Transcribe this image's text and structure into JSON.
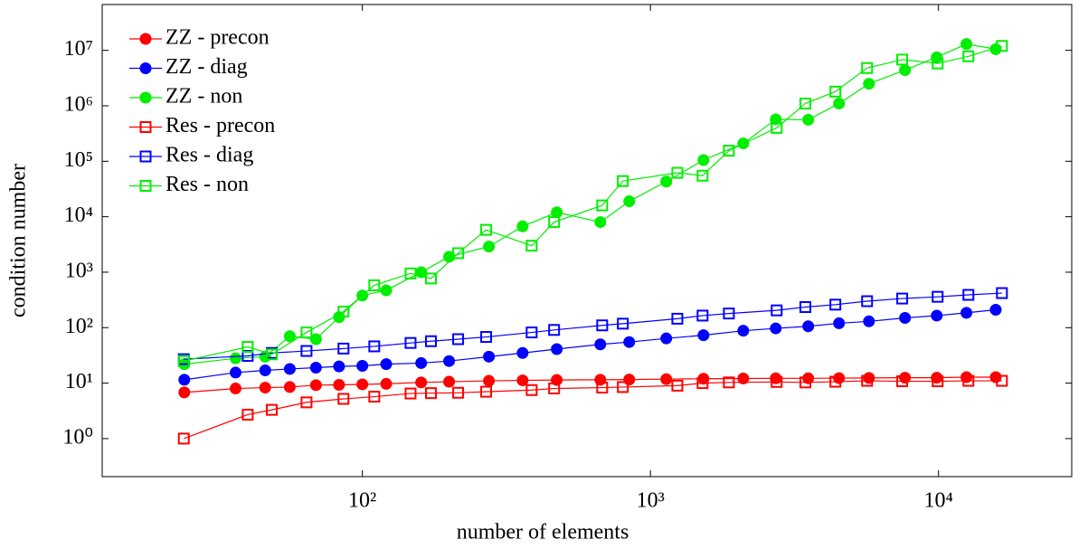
{
  "chart_data": {
    "type": "line",
    "xlabel": "number of elements",
    "ylabel": "condition number",
    "xscale": "log",
    "yscale": "log",
    "xlim": [
      12.5,
      29000
    ],
    "ylim": [
      0.206,
      67000000
    ],
    "xticks": [
      {
        "value": 100,
        "label": "10²"
      },
      {
        "value": 1000,
        "label": "10³"
      },
      {
        "value": 10000,
        "label": "10⁴"
      }
    ],
    "yticks": [
      {
        "value": 1,
        "label": "10⁰"
      },
      {
        "value": 10,
        "label": "10¹"
      },
      {
        "value": 100,
        "label": "10²"
      },
      {
        "value": 1000,
        "label": "10³"
      },
      {
        "value": 10000,
        "label": "10⁴"
      },
      {
        "value": 100000,
        "label": "10⁵"
      },
      {
        "value": 1000000,
        "label": "10⁶"
      },
      {
        "value": 10000000,
        "label": "10⁷"
      }
    ],
    "legend": "upper left",
    "series": [
      {
        "name": "ZZ - precon",
        "color": "#ff0000",
        "marker": "circle",
        "x": [
          24.1,
          36.3,
          46,
          56,
          69,
          83,
          100,
          121,
          160,
          200,
          275,
          360,
          473,
          670,
          844,
          1135,
          1528,
          2100,
          2723,
          3530,
          4515,
          5735,
          7650,
          9860,
          12500,
          15800
        ],
        "values": [
          6.8,
          8,
          8.3,
          8.5,
          9.2,
          9.3,
          9.5,
          9.7,
          10.3,
          10.6,
          11,
          11.2,
          11.4,
          11.5,
          11.6,
          11.8,
          12,
          12.1,
          12.2,
          12.2,
          12.3,
          12.4,
          12.5,
          12.5,
          12.8,
          12.8
        ]
      },
      {
        "name": "ZZ - diag",
        "color": "#0000ff",
        "marker": "circle",
        "x": [
          24.1,
          36.3,
          46,
          56,
          69,
          83,
          100,
          121,
          160,
          200,
          275,
          360,
          473,
          670,
          844,
          1135,
          1528,
          2100,
          2723,
          3530,
          4515,
          5735,
          7650,
          9860,
          12500,
          15800
        ],
        "values": [
          11.5,
          15.5,
          17,
          18,
          19,
          20,
          20.5,
          22,
          23,
          25,
          30,
          35,
          41,
          50,
          55,
          64,
          73,
          88,
          97,
          106,
          120,
          130,
          150,
          165,
          185,
          210
        ]
      },
      {
        "name": "ZZ - non",
        "color": "#00ee00",
        "marker": "circle",
        "x": [
          24.1,
          36.3,
          46,
          56,
          69,
          83,
          100,
          121,
          160,
          200,
          275,
          360,
          473,
          670,
          844,
          1135,
          1528,
          2100,
          2723,
          3530,
          4515,
          5735,
          7650,
          9860,
          12500,
          15800
        ],
        "values": [
          22,
          28,
          30,
          70,
          62,
          155,
          380,
          470,
          1000,
          1900,
          2900,
          6700,
          12000,
          8000,
          19000,
          43000,
          105000,
          210000,
          570000,
          560000,
          1100000,
          2500000,
          4400000,
          7500000,
          13000000,
          10500000
        ]
      },
      {
        "name": "Res - precon",
        "color": "#ff0000",
        "marker": "square",
        "x": [
          24,
          40,
          48.5,
          64,
          86,
          110,
          147,
          173,
          215,
          269,
          387,
          463,
          680,
          802,
          1240,
          1517,
          1872,
          2743,
          3450,
          4385,
          5650,
          7480,
          9930,
          12700,
          16600
        ],
        "values": [
          1.0,
          2.7,
          3.3,
          4.5,
          5.2,
          5.7,
          6.5,
          6.6,
          6.7,
          7,
          7.5,
          8,
          8.3,
          8.5,
          9,
          10,
          10.3,
          10.5,
          10.3,
          10.6,
          11,
          10.8,
          10.8,
          11,
          11
        ]
      },
      {
        "name": "Res - diag",
        "color": "#0000ff",
        "marker": "square",
        "x": [
          24,
          40,
          48.5,
          64,
          86,
          110,
          147,
          173,
          215,
          269,
          387,
          463,
          680,
          802,
          1240,
          1517,
          1872,
          2743,
          3450,
          4385,
          5650,
          7480,
          9930,
          12700,
          16600
        ],
        "values": [
          27,
          31,
          35,
          38,
          42,
          46,
          53,
          57,
          62,
          68,
          82,
          91,
          110,
          118,
          145,
          165,
          180,
          205,
          235,
          260,
          300,
          335,
          360,
          390,
          420
        ]
      },
      {
        "name": "Res - non",
        "color": "#00ee00",
        "marker": "square",
        "x": [
          24,
          40,
          48.5,
          64,
          86,
          110,
          147,
          173,
          215,
          269,
          387,
          463,
          680,
          802,
          1240,
          1517,
          1872,
          2743,
          3450,
          4385,
          5650,
          7480,
          9930,
          12700,
          16600
        ],
        "values": [
          25,
          45,
          33,
          82,
          195,
          580,
          950,
          770,
          2200,
          5800,
          3000,
          8000,
          16000,
          44000,
          62000,
          55000,
          155000,
          400000,
          1100000,
          1800000,
          4800000,
          6800000,
          5800000,
          7800000,
          12000000
        ]
      }
    ]
  }
}
